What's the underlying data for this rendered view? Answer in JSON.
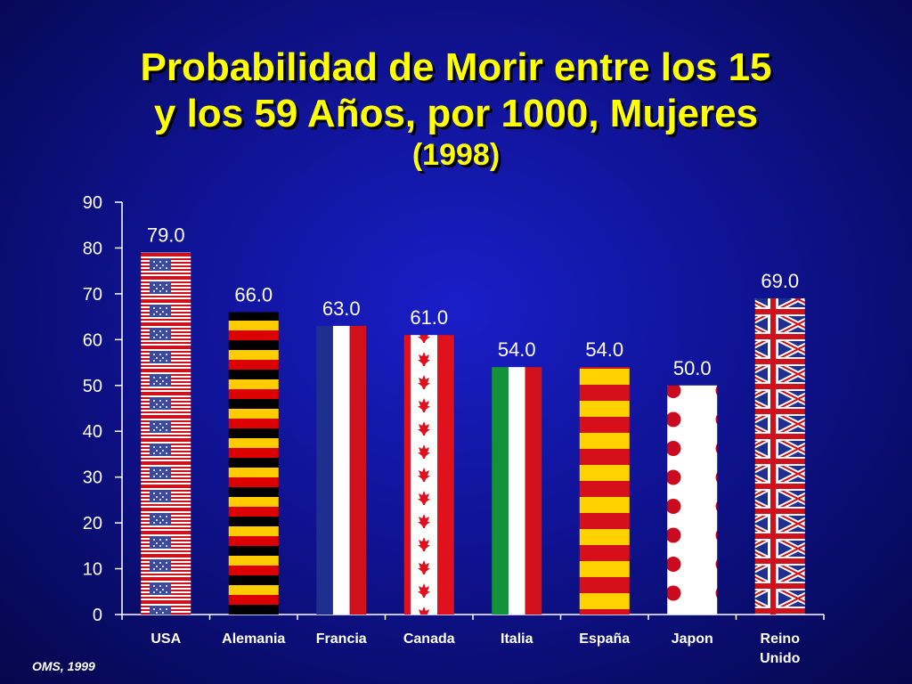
{
  "slide": {
    "title_line1": "Probabilidad de Morir entre los 15",
    "title_line2": "y los 59 Años, por 1000, Mujeres",
    "title_line3": "(1998)",
    "footnote": "OMS, 1999"
  },
  "colors": {
    "background": "#0f1393",
    "title": "#ffff00",
    "text": "#ffffff",
    "axis": "#ffffff"
  },
  "chart_data": {
    "type": "bar",
    "categories": [
      "USA",
      "Alemania",
      "Francia",
      "Canada",
      "Italia",
      "España",
      "Japon",
      "Reino Unido"
    ],
    "category_lines": [
      [
        "USA"
      ],
      [
        "Alemania"
      ],
      [
        "Francia"
      ],
      [
        "Canada"
      ],
      [
        "Italia"
      ],
      [
        "España"
      ],
      [
        "Japon"
      ],
      [
        "Reino",
        "Unido"
      ]
    ],
    "values": [
      79.0,
      66.0,
      63.0,
      61.0,
      54.0,
      54.0,
      50.0,
      69.0
    ],
    "value_labels": [
      "79.0",
      "66.0",
      "63.0",
      "61.0",
      "54.0",
      "54.0",
      "50.0",
      "69.0"
    ],
    "bar_patterns": [
      "flag-usa",
      "flag-germany",
      "flag-france",
      "flag-canada",
      "flag-italy",
      "flag-spain",
      "flag-japan",
      "flag-uk"
    ],
    "ylim": [
      0,
      90
    ],
    "yticks": [
      0,
      10,
      20,
      30,
      40,
      50,
      60,
      70,
      80,
      90
    ],
    "grid": false,
    "legend": "none"
  }
}
